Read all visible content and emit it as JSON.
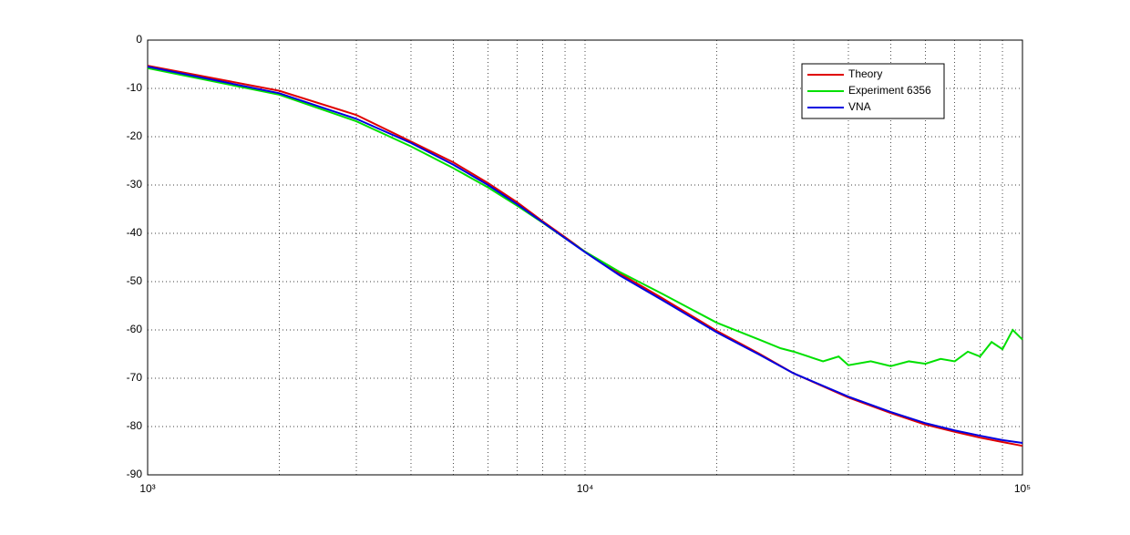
{
  "chart_data": {
    "type": "line",
    "xscale": "log",
    "xlim": [
      1000,
      100000
    ],
    "ylim": [
      -90,
      0
    ],
    "xticks": [
      {
        "value": 1000,
        "label": "10³"
      },
      {
        "value": 10000,
        "label": "10⁴"
      },
      {
        "value": 100000,
        "label": "10⁵"
      }
    ],
    "xminorticks": [
      2000,
      3000,
      4000,
      5000,
      6000,
      7000,
      8000,
      9000,
      20000,
      30000,
      40000,
      50000,
      60000,
      70000,
      80000,
      90000
    ],
    "yticks": [
      -90,
      -80,
      -70,
      -60,
      -50,
      -40,
      -30,
      -20,
      -10,
      0
    ],
    "grid": true,
    "legend_loc": "upper right",
    "series": [
      {
        "name": "Theory",
        "color": "#e00000",
        "x": [
          1000,
          2000,
          3000,
          4000,
          5000,
          6000,
          7000,
          8000,
          9000,
          10000,
          12000,
          15000,
          20000,
          25000,
          30000,
          40000,
          50000,
          60000,
          70000,
          80000,
          90000,
          100000
        ],
        "values": [
          -5.3,
          -10.5,
          -15.5,
          -21,
          -25.3,
          -29.6,
          -33.6,
          -37.5,
          -40.8,
          -43.8,
          -48.3,
          -53.4,
          -60.2,
          -64.9,
          -69,
          -74,
          -77.2,
          -79.6,
          -81.1,
          -82.3,
          -83.2,
          -84
        ]
      },
      {
        "name": "Experiment 6356",
        "color": "#00e000",
        "x": [
          1000,
          2000,
          3000,
          4000,
          5000,
          6000,
          7000,
          8000,
          9000,
          10000,
          12000,
          15000,
          20000,
          25000,
          28000,
          30000,
          35000,
          38000,
          40000,
          45000,
          50000,
          55000,
          60000,
          65000,
          70000,
          75000,
          80000,
          85000,
          90000,
          95000,
          100000
        ],
        "values": [
          -5.8,
          -11.3,
          -16.8,
          -22,
          -26.5,
          -30.5,
          -34.3,
          -37.8,
          -41,
          -43.8,
          -48,
          -52.5,
          -58.5,
          -62,
          -63.8,
          -64.5,
          -66.5,
          -65.5,
          -67.3,
          -66.5,
          -67.5,
          -66.5,
          -67,
          -66,
          -66.5,
          -64.5,
          -65.5,
          -62.5,
          -64,
          -60,
          -62
        ]
      },
      {
        "name": "VNA",
        "color": "#0000e0",
        "x": [
          1000,
          2000,
          3000,
          4000,
          5000,
          6000,
          7000,
          8000,
          9000,
          10000,
          12000,
          15000,
          20000,
          25000,
          30000,
          40000,
          50000,
          60000,
          70000,
          80000,
          90000,
          100000
        ],
        "values": [
          -5.5,
          -11,
          -16.3,
          -21.3,
          -25.8,
          -30,
          -34,
          -37.7,
          -41,
          -43.9,
          -48.7,
          -53.8,
          -60.5,
          -65.1,
          -69,
          -73.8,
          -77,
          -79.3,
          -80.8,
          -81.9,
          -82.8,
          -83.4
        ]
      }
    ]
  }
}
